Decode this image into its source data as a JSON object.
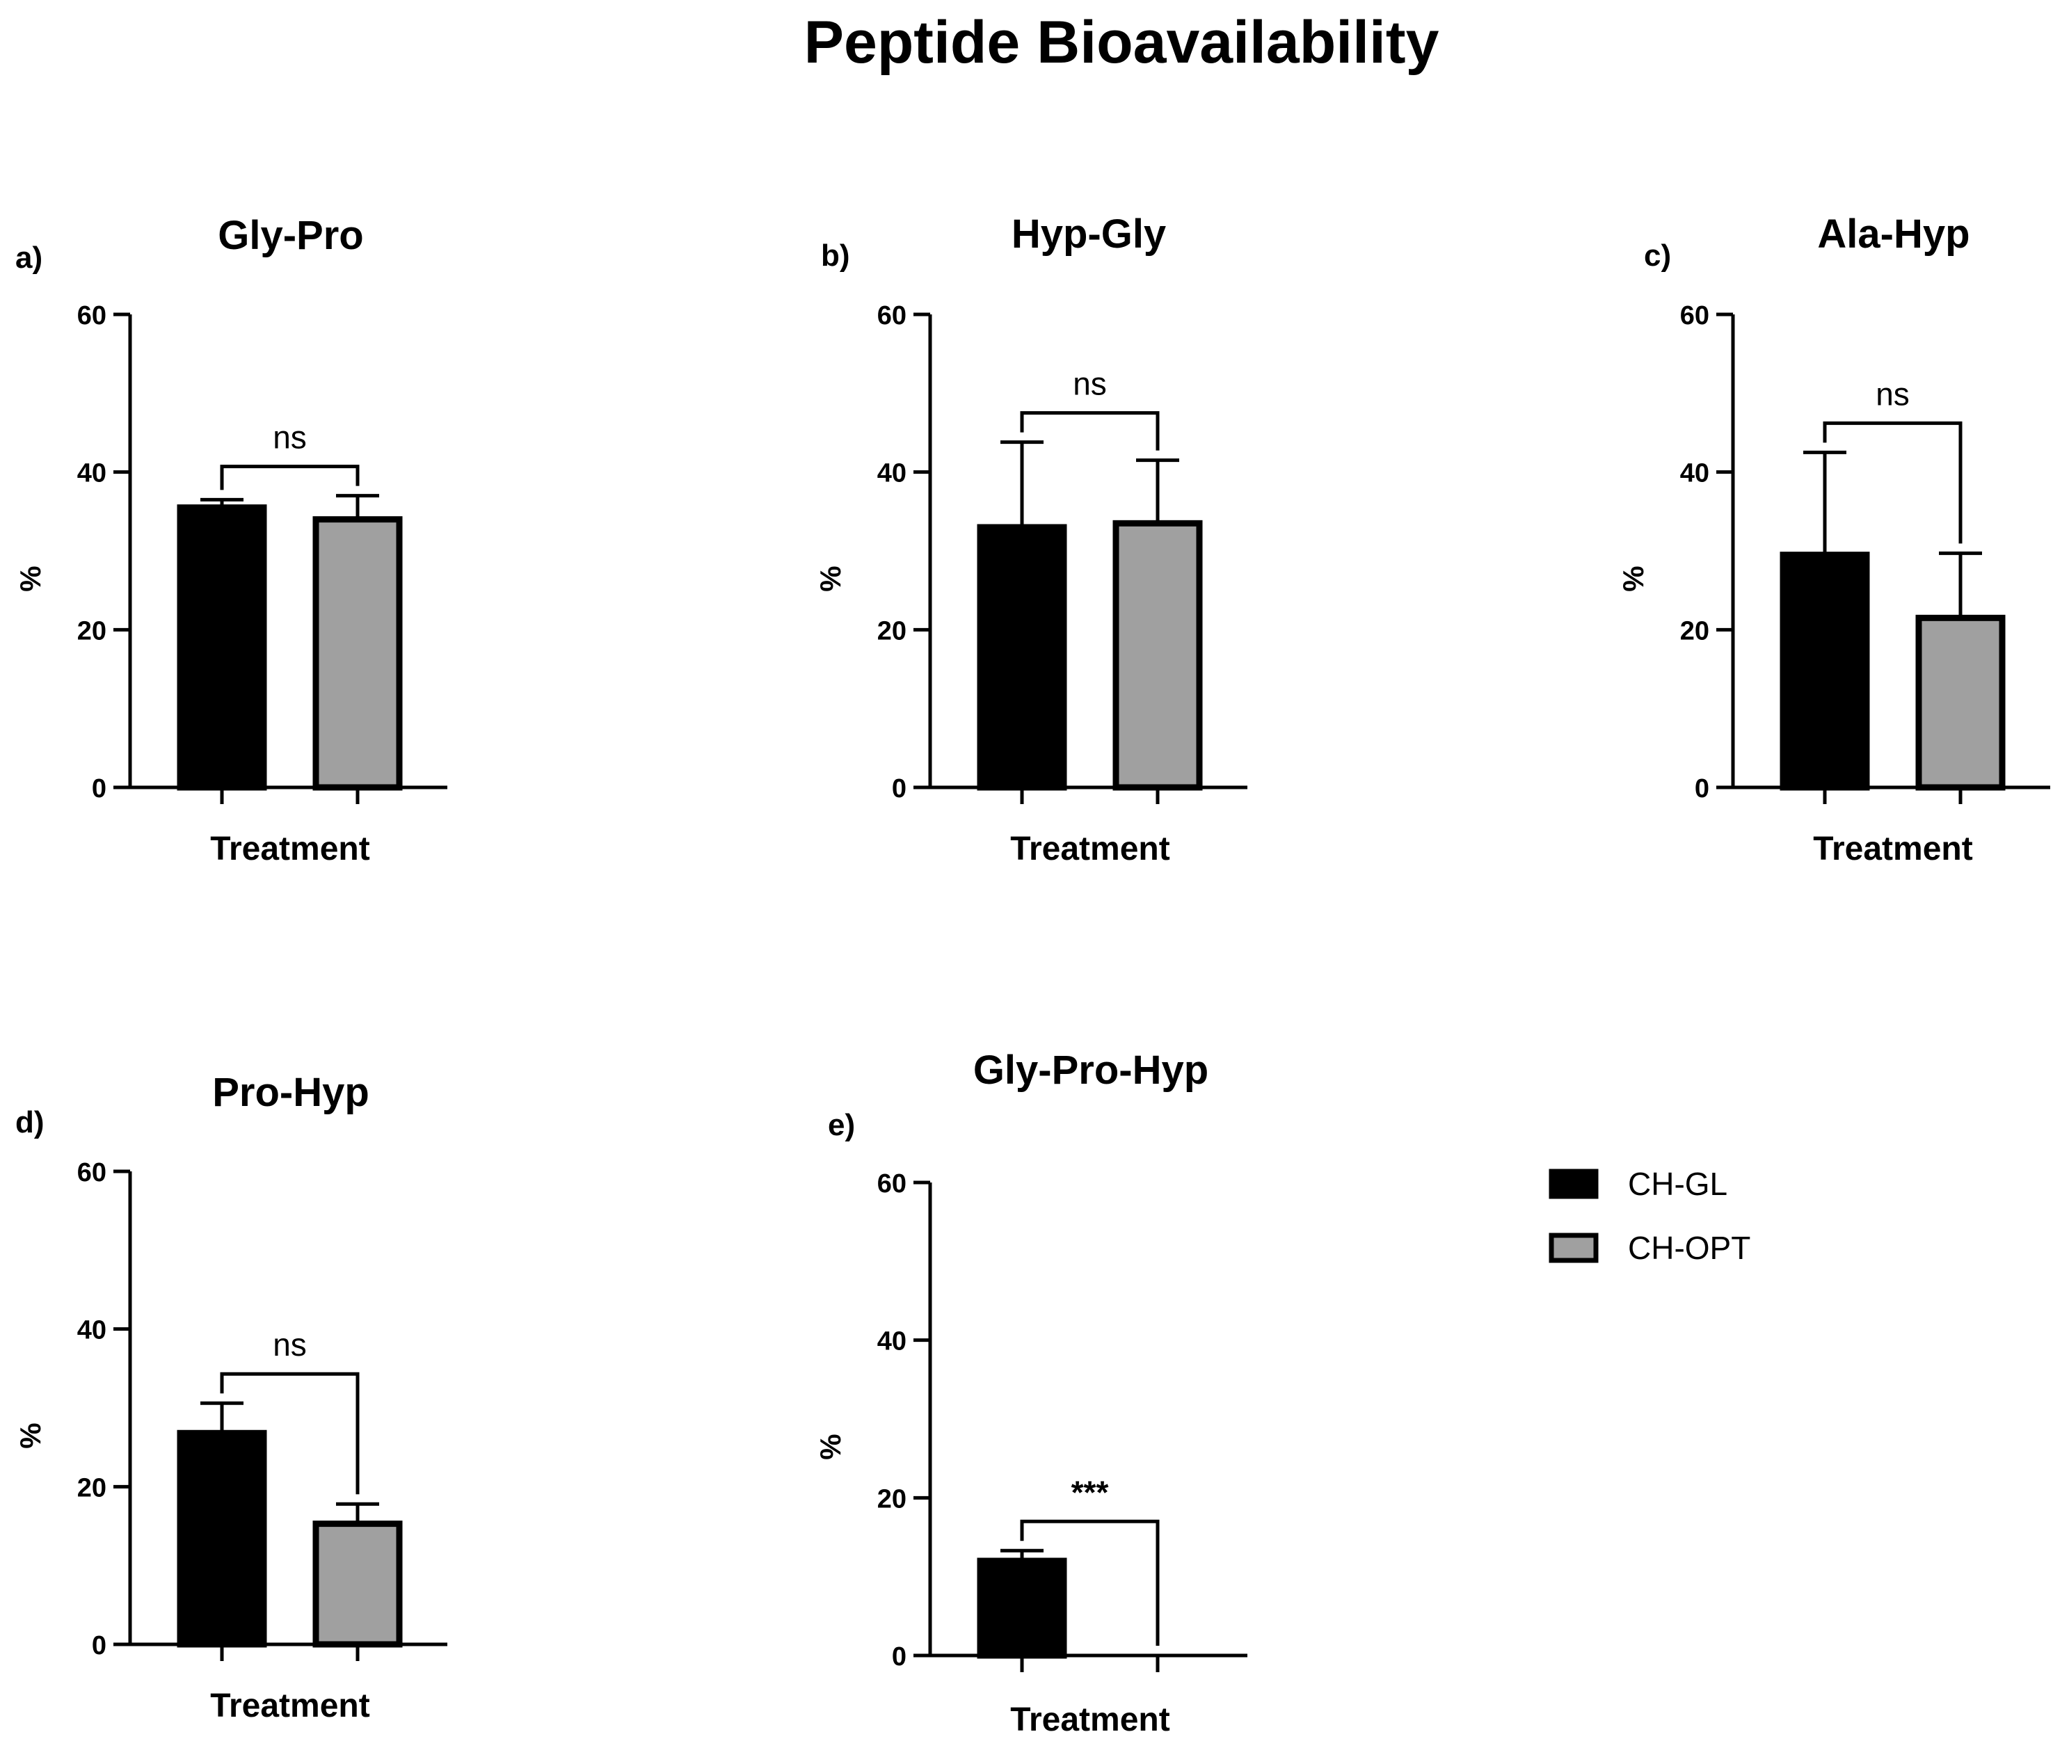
{
  "figure_title": "Peptide Bioavailability",
  "colors": {
    "CH-GL": "#000000",
    "CH-OPT": "#a0a0a0"
  },
  "legend": [
    {
      "name": "CH-GL",
      "color": "#000000"
    },
    {
      "name": "CH-OPT",
      "color": "#a0a0a0"
    }
  ],
  "chart_data": [
    {
      "type": "bar",
      "panel": "a)",
      "title": "Gly-Pro",
      "xlabel": "Treatment",
      "ylabel": "%",
      "ylim": [
        0,
        60
      ],
      "yticks": [
        "0",
        "20",
        "40",
        "60"
      ],
      "series": [
        {
          "name": "CH-GL",
          "value": 35.5,
          "error": 1.0
        },
        {
          "name": "CH-OPT",
          "value": 34.0,
          "error": 3.0
        }
      ],
      "significance": "ns"
    },
    {
      "type": "bar",
      "panel": "b)",
      "title": "Hyp-Gly",
      "xlabel": "Treatment",
      "ylabel": "%",
      "ylim": [
        0,
        60
      ],
      "yticks": [
        "0",
        "20",
        "40",
        "60"
      ],
      "series": [
        {
          "name": "CH-GL",
          "value": 33.0,
          "error": 10.8
        },
        {
          "name": "CH-OPT",
          "value": 33.5,
          "error": 8.0
        }
      ],
      "significance": "ns"
    },
    {
      "type": "bar",
      "panel": "c)",
      "title": "Ala-Hyp",
      "xlabel": "Treatment",
      "ylabel": "%",
      "ylim": [
        0,
        60
      ],
      "yticks": [
        "0",
        "20",
        "40",
        "60"
      ],
      "series": [
        {
          "name": "CH-GL",
          "value": 29.5,
          "error": 13.0
        },
        {
          "name": "CH-OPT",
          "value": 21.5,
          "error": 8.2
        }
      ],
      "significance": "ns"
    },
    {
      "type": "bar",
      "panel": "d)",
      "title": "Pro-Hyp",
      "xlabel": "Treatment",
      "ylabel": "%",
      "ylim": [
        0,
        60
      ],
      "yticks": [
        "0",
        "20",
        "40",
        "60"
      ],
      "series": [
        {
          "name": "CH-GL",
          "value": 26.8,
          "error": 3.8
        },
        {
          "name": "CH-OPT",
          "value": 15.3,
          "error": 2.5
        }
      ],
      "significance": "ns"
    },
    {
      "type": "bar",
      "panel": "e)",
      "title": "Gly-Pro-Hyp",
      "xlabel": "Treatment",
      "ylabel": "%",
      "ylim": [
        0,
        60
      ],
      "yticks": [
        "0",
        "20",
        "40",
        "60"
      ],
      "series": [
        {
          "name": "CH-GL",
          "value": 12.0,
          "error": 1.3
        },
        {
          "name": "CH-OPT",
          "value": 0,
          "error": 0
        }
      ],
      "significance": "***"
    }
  ]
}
